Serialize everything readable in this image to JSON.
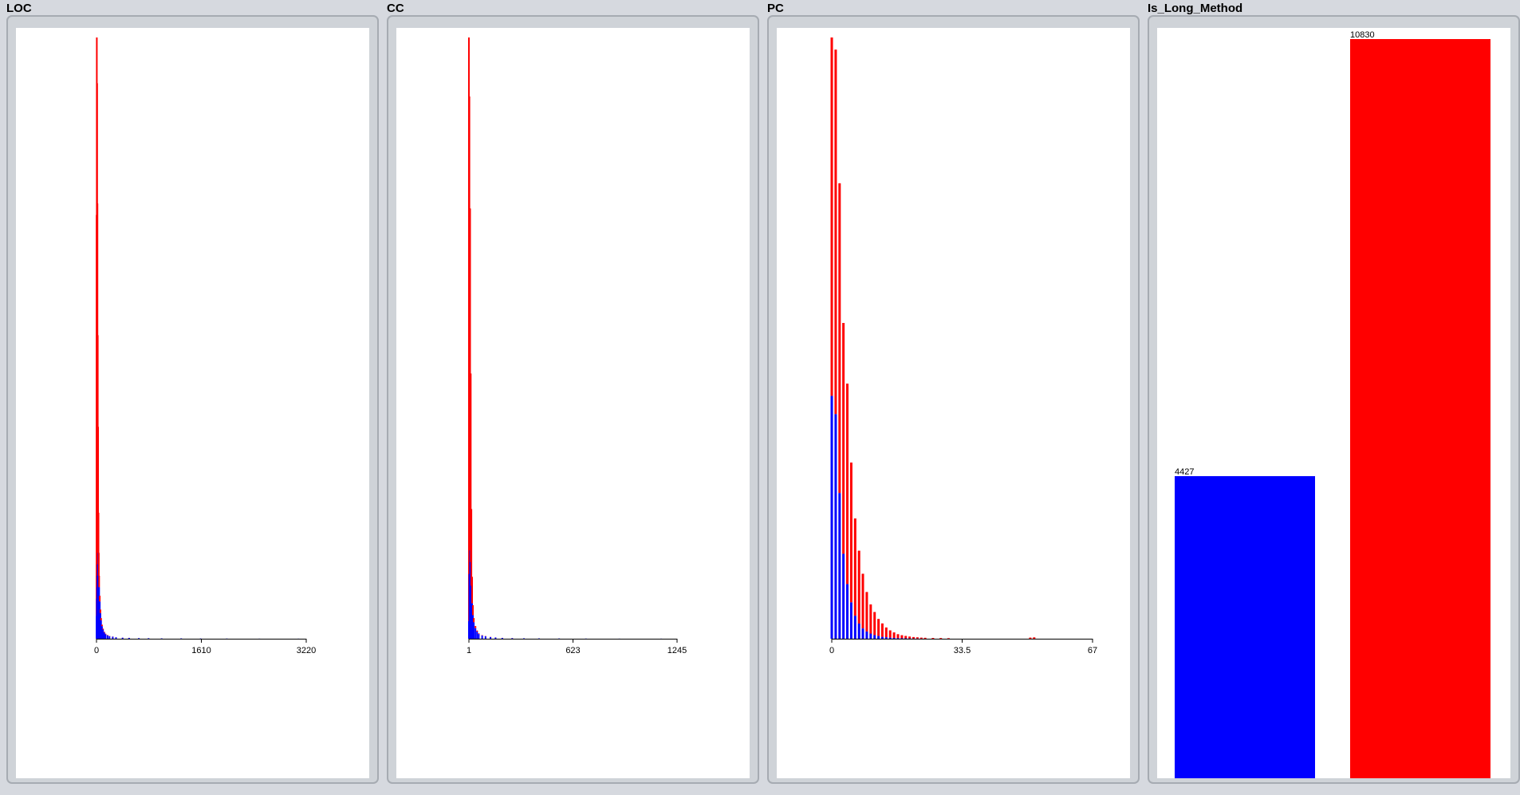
{
  "colors": {
    "background": "#d6d9df",
    "frame_border": "#a6abb2",
    "plot_background": "#ffffff",
    "class_a": "#0000ff",
    "class_b": "#ff0000",
    "axis": "#000000"
  },
  "panels": [
    {
      "title": "LOC"
    },
    {
      "title": "CC"
    },
    {
      "title": "PC"
    },
    {
      "title": "Is_Long_Method"
    }
  ],
  "chart_data": [
    {
      "type": "bar",
      "title": "LOC",
      "stacked": true,
      "x_range": [
        0,
        3220
      ],
      "x_ticks": [
        {
          "value": 0,
          "label": "0"
        },
        {
          "value": 1610,
          "label": "1610"
        },
        {
          "value": 3220,
          "label": "3220"
        }
      ],
      "series": [
        {
          "color": "#0000ff",
          "x": [
            1,
            5,
            10,
            15,
            20,
            25,
            30,
            35,
            40,
            50,
            60,
            70,
            85,
            100,
            120,
            140,
            170,
            200,
            250,
            300,
            400,
            500,
            650,
            800,
            1000,
            1300,
            1600,
            2000,
            2500,
            3100
          ],
          "values": [
            400,
            700,
            900,
            1100,
            1300,
            1500,
            1300,
            1100,
            900,
            650,
            450,
            320,
            220,
            160,
            110,
            80,
            60,
            45,
            35,
            25,
            18,
            14,
            10,
            8,
            6,
            5,
            4,
            3,
            2,
            1
          ]
        },
        {
          "color": "#ff0000",
          "x": [
            1,
            5,
            10,
            15,
            20,
            25,
            30,
            35,
            40,
            50,
            60,
            70,
            85,
            100,
            120,
            140,
            170,
            200,
            250,
            300,
            400,
            500,
            650,
            800,
            1000,
            1300,
            1600,
            2000,
            2500,
            3100
          ],
          "values": [
            7000,
            9800,
            8800,
            6500,
            4000,
            2200,
            900,
            400,
            200,
            100,
            60,
            40,
            25,
            15,
            10,
            8,
            6,
            4,
            3,
            2,
            1,
            1,
            0,
            0,
            0,
            0,
            0,
            0,
            0,
            0
          ]
        }
      ]
    },
    {
      "type": "bar",
      "title": "CC",
      "stacked": true,
      "x_range": [
        1,
        1245
      ],
      "x_ticks": [
        {
          "value": 1,
          "label": "1"
        },
        {
          "value": 623,
          "label": "623"
        },
        {
          "value": 1245,
          "label": "1245"
        }
      ],
      "series": [
        {
          "color": "#0000ff",
          "x": [
            1,
            4,
            8,
            12,
            16,
            20,
            25,
            30,
            40,
            50,
            60,
            80,
            100,
            130,
            160,
            200,
            260,
            330,
            420,
            540,
            700,
            900,
            1150
          ],
          "values": [
            300,
            1100,
            1500,
            1300,
            900,
            600,
            400,
            280,
            180,
            120,
            80,
            55,
            40,
            28,
            20,
            14,
            10,
            7,
            5,
            4,
            3,
            2,
            1
          ]
        },
        {
          "color": "#ff0000",
          "x": [
            1,
            4,
            8,
            12,
            16,
            20,
            25,
            30,
            40,
            50,
            60,
            80,
            100,
            130,
            160,
            200,
            260,
            330,
            420,
            540,
            700,
            900,
            1150
          ],
          "values": [
            9900,
            8100,
            5800,
            3200,
            1300,
            450,
            170,
            70,
            35,
            18,
            10,
            6,
            4,
            3,
            2,
            1,
            1,
            0,
            0,
            0,
            0,
            0,
            0
          ]
        }
      ]
    },
    {
      "type": "bar",
      "title": "PC",
      "stacked": true,
      "x_range": [
        0,
        67
      ],
      "x_ticks": [
        {
          "value": 0,
          "label": "0"
        },
        {
          "value": 33.5,
          "label": "33.5"
        },
        {
          "value": 67,
          "label": "67"
        }
      ],
      "series": [
        {
          "color": "#0000ff",
          "x": [
            0,
            1,
            2,
            3,
            4,
            5,
            6,
            7,
            8,
            9,
            10,
            11,
            12,
            13,
            14,
            15,
            16,
            17,
            18,
            19,
            20,
            21,
            22,
            23,
            24,
            26,
            28,
            30,
            51,
            52
          ],
          "values": [
            4000,
            3700,
            2400,
            1400,
            900,
            600,
            380,
            250,
            170,
            120,
            85,
            60,
            45,
            32,
            25,
            18,
            14,
            10,
            8,
            6,
            5,
            4,
            3,
            2,
            2,
            1,
            1,
            1,
            0,
            0
          ]
        },
        {
          "color": "#ff0000",
          "x": [
            0,
            1,
            2,
            3,
            4,
            5,
            6,
            7,
            8,
            9,
            10,
            11,
            12,
            13,
            14,
            15,
            16,
            17,
            18,
            19,
            20,
            21,
            22,
            23,
            24,
            26,
            28,
            30,
            51,
            52
          ],
          "values": [
            5900,
            6000,
            5100,
            3800,
            3300,
            2300,
            1600,
            1200,
            900,
            650,
            480,
            380,
            280,
            220,
            160,
            120,
            90,
            65,
            50,
            40,
            30,
            24,
            20,
            16,
            14,
            12,
            10,
            8,
            18,
            22
          ]
        }
      ]
    },
    {
      "type": "bar",
      "title": "Is_Long_Method",
      "categories": [
        "",
        ""
      ],
      "values": [
        4427,
        10830
      ],
      "value_labels": [
        "4427",
        "10830"
      ],
      "colors": [
        "#0000ff",
        "#ff0000"
      ],
      "ylim": [
        0,
        10830
      ]
    }
  ]
}
